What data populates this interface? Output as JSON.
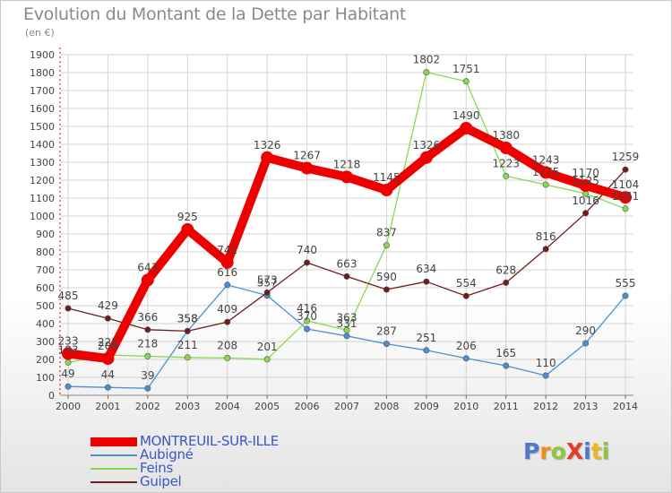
{
  "title": "Evolution du Montant de la Dette par Habitant",
  "unit": "(en €)",
  "logo": {
    "text": "ProXiti",
    "colors": [
      "#4e79c8",
      "#f08c1e",
      "#8fc63d",
      "#e63a2c",
      "#4e79c8",
      "#f0b41e",
      "#8fc63d"
    ]
  },
  "chart_data": {
    "type": "line",
    "x": [
      "2000",
      "2001",
      "2002",
      "2003",
      "2004",
      "2005",
      "2006",
      "2007",
      "2008",
      "2009",
      "2010",
      "2011",
      "2012",
      "2013",
      "2014"
    ],
    "ylim": [
      0,
      1900
    ],
    "yticks": [
      0,
      100,
      200,
      300,
      400,
      500,
      600,
      700,
      800,
      900,
      1000,
      1100,
      1200,
      1300,
      1400,
      1500,
      1600,
      1700,
      1800,
      1900
    ],
    "grid": true,
    "legend_position": "bottom-left",
    "series": [
      {
        "name": "MONTREUIL-SUR-ILLE",
        "color": "#ee0000",
        "values": [
          233,
          205,
          643,
          925,
          741,
          1326,
          1267,
          1218,
          1145,
          1326,
          1490,
          1380,
          1243,
          1170,
          1104
        ]
      },
      {
        "name": "Aubigné",
        "color": "#4a90d0",
        "values": [
          49,
          44,
          39,
          358,
          616,
          557,
          370,
          331,
          287,
          251,
          206,
          165,
          110,
          290,
          555
        ]
      },
      {
        "name": "Feins",
        "color": "#88d850",
        "values": [
          183,
          225,
          218,
          211,
          208,
          201,
          416,
          363,
          837,
          1802,
          1751,
          1223,
          1175,
          1125,
          1041
        ]
      },
      {
        "name": "Guipel",
        "color": "#701c1c",
        "values": [
          485,
          429,
          366,
          358,
          409,
          573,
          740,
          663,
          590,
          634,
          554,
          628,
          816,
          1016,
          1259
        ]
      }
    ]
  }
}
